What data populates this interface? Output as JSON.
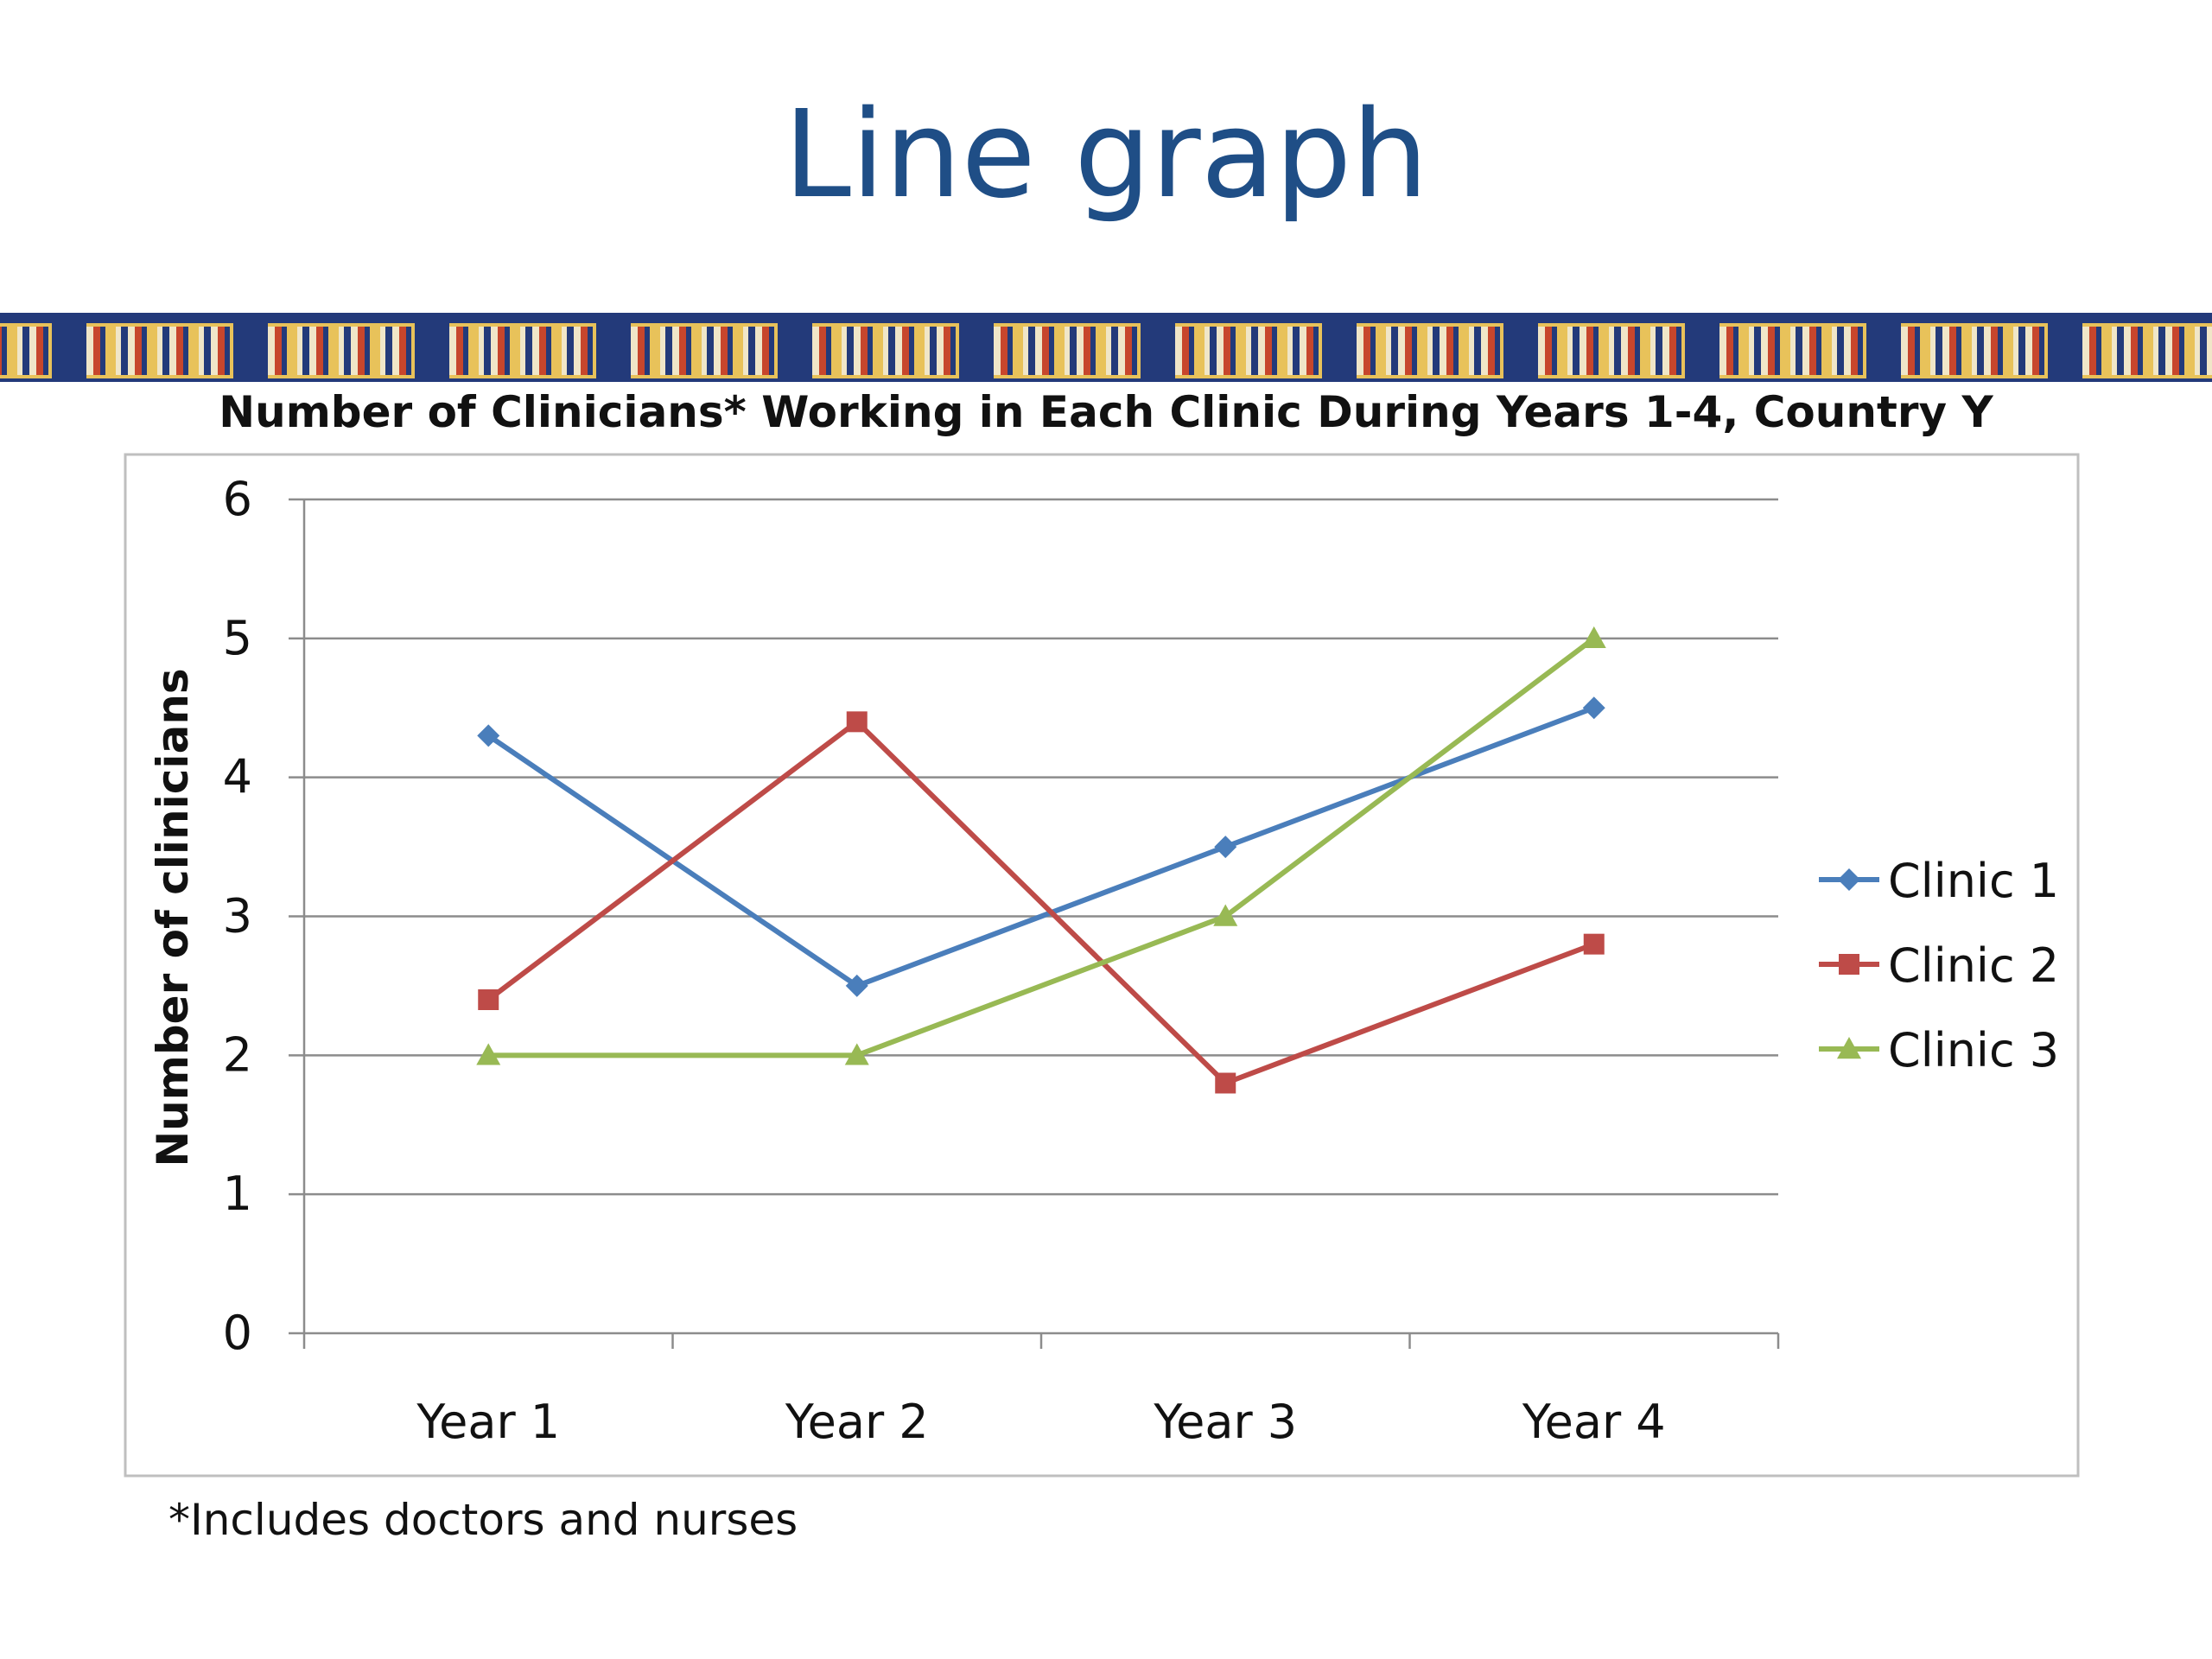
{
  "slide": {
    "title": "Line graph",
    "footnote": "*Includes doctors and nurses"
  },
  "colors": {
    "title": "#1f4e86",
    "band": "#233a7a",
    "grid": "#8c8c8c",
    "frame": "#bfbfbf"
  },
  "chart_data": {
    "type": "line",
    "title": "Number of Clinicians* Working in Each Clinic During Years 1-4, Country Y",
    "xlabel": "",
    "ylabel": "Number of clinicians",
    "categories": [
      "Year 1",
      "Year 2",
      "Year 3",
      "Year 4"
    ],
    "ylim": [
      0,
      6
    ],
    "yticks": [
      "0",
      "1",
      "2",
      "3",
      "4",
      "5",
      "6"
    ],
    "grid": true,
    "legend_position": "right",
    "series": [
      {
        "name": "Clinic 1",
        "values": [
          4.3,
          2.5,
          3.5,
          4.5
        ],
        "color": "#4a7ebb",
        "marker": "diamond"
      },
      {
        "name": "Clinic 2",
        "values": [
          2.4,
          4.4,
          1.8,
          2.8
        ],
        "color": "#be4b48",
        "marker": "square"
      },
      {
        "name": "Clinic 3",
        "values": [
          2.0,
          2.0,
          3.0,
          5.0
        ],
        "color": "#98b954",
        "marker": "triangle"
      }
    ]
  }
}
